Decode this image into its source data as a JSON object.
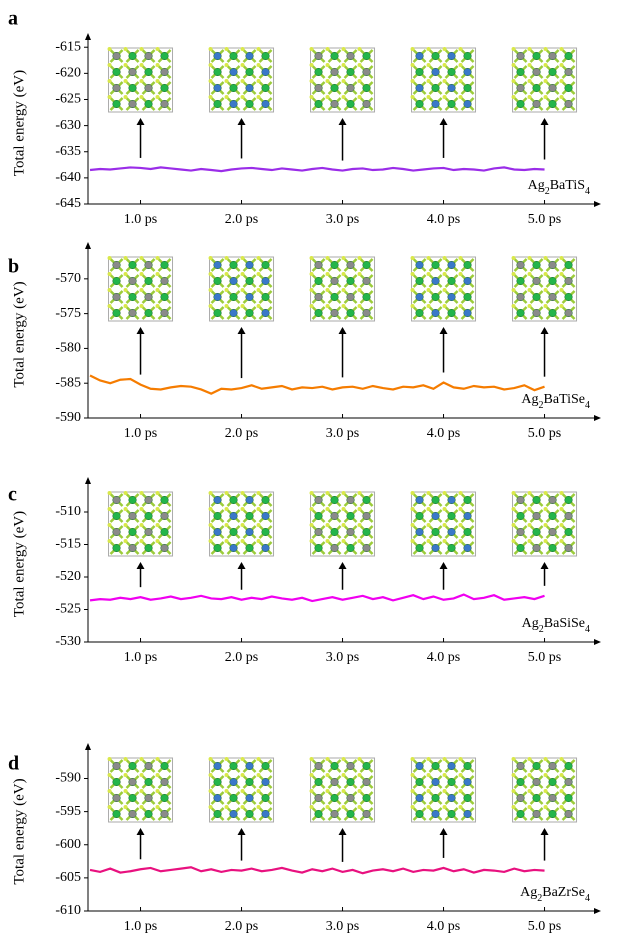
{
  "chart_data": [
    {
      "type": "line",
      "panel_label": "a",
      "ylabel": "Total energy (eV)",
      "compound": [
        "Ag",
        "2",
        "BaTiS",
        "4"
      ],
      "color": "#9a2de8",
      "xlim": [
        0.48,
        5.47
      ],
      "ylim": [
        -645,
        -614
      ],
      "yticks": [
        -645,
        -640,
        -635,
        -630,
        -625,
        -620,
        -615
      ],
      "xticks": [
        {
          "value": 1,
          "label": "1.0 ps"
        },
        {
          "value": 2,
          "label": "2.0 ps"
        },
        {
          "value": 3,
          "label": "3.0 ps"
        },
        {
          "value": 4,
          "label": "4.0 ps"
        },
        {
          "value": 5,
          "label": "5.0 ps"
        }
      ],
      "x": [
        0.5,
        0.6,
        0.7,
        0.8,
        0.9,
        1.0,
        1.1,
        1.2,
        1.3,
        1.4,
        1.5,
        1.6,
        1.7,
        1.8,
        1.9,
        2.0,
        2.1,
        2.2,
        2.3,
        2.4,
        2.5,
        2.6,
        2.7,
        2.8,
        2.9,
        3.0,
        3.1,
        3.2,
        3.3,
        3.4,
        3.5,
        3.6,
        3.7,
        3.8,
        3.9,
        4.0,
        4.1,
        4.2,
        4.3,
        4.4,
        4.5,
        4.6,
        4.7,
        4.8,
        4.9,
        5.0
      ],
      "values": [
        -638.5,
        -638.3,
        -638.4,
        -638.2,
        -638.0,
        -638.1,
        -638.3,
        -638.0,
        -638.2,
        -638.4,
        -638.6,
        -638.3,
        -638.5,
        -638.7,
        -638.4,
        -638.2,
        -638.1,
        -638.3,
        -638.5,
        -638.2,
        -638.4,
        -638.6,
        -638.3,
        -638.1,
        -638.4,
        -638.6,
        -638.3,
        -638.2,
        -638.5,
        -638.4,
        -638.1,
        -638.3,
        -638.6,
        -638.4,
        -638.2,
        -638.1,
        -638.5,
        -638.3,
        -638.4,
        -638.6,
        -638.2,
        -638.0,
        -638.4,
        -638.5,
        -638.3,
        -638.4
      ]
    },
    {
      "type": "line",
      "panel_label": "b",
      "ylabel": "Total energy (eV)",
      "compound": [
        "Ag",
        "2",
        "BaTiSe",
        "4"
      ],
      "color": "#f57c00",
      "xlim": [
        0.48,
        5.47
      ],
      "ylim": [
        -590,
        -566
      ],
      "yticks": [
        -590,
        -585,
        -580,
        -575,
        -570
      ],
      "xticks": [
        {
          "value": 1,
          "label": "1.0 ps"
        },
        {
          "value": 2,
          "label": "2.0 ps"
        },
        {
          "value": 3,
          "label": "3.0 ps"
        },
        {
          "value": 4,
          "label": "4.0 ps"
        },
        {
          "value": 5,
          "label": "5.0 ps"
        }
      ],
      "x": [
        0.5,
        0.6,
        0.7,
        0.8,
        0.9,
        1.0,
        1.1,
        1.2,
        1.3,
        1.4,
        1.5,
        1.6,
        1.7,
        1.8,
        1.9,
        2.0,
        2.1,
        2.2,
        2.3,
        2.4,
        2.5,
        2.6,
        2.7,
        2.8,
        2.9,
        3.0,
        3.1,
        3.2,
        3.3,
        3.4,
        3.5,
        3.6,
        3.7,
        3.8,
        3.9,
        4.0,
        4.1,
        4.2,
        4.3,
        4.4,
        4.5,
        4.6,
        4.7,
        4.8,
        4.9,
        5.0
      ],
      "values": [
        -583.9,
        -584.6,
        -585.0,
        -584.5,
        -584.4,
        -585.2,
        -585.8,
        -585.9,
        -585.6,
        -585.4,
        -585.5,
        -585.9,
        -586.5,
        -585.8,
        -585.9,
        -585.7,
        -585.3,
        -585.8,
        -585.6,
        -585.4,
        -585.9,
        -585.6,
        -585.7,
        -585.5,
        -585.9,
        -585.6,
        -585.5,
        -585.8,
        -585.4,
        -585.7,
        -585.9,
        -585.5,
        -585.6,
        -585.3,
        -585.8,
        -584.9,
        -585.6,
        -585.8,
        -585.4,
        -585.6,
        -585.5,
        -585.9,
        -585.7,
        -585.3,
        -586.0,
        -585.5
      ]
    },
    {
      "type": "line",
      "panel_label": "c",
      "ylabel": "Total energy (eV)",
      "compound": [
        "Ag",
        "2",
        "BaSiSe",
        "4"
      ],
      "color": "#f000f0",
      "xlim": [
        0.48,
        5.47
      ],
      "ylim": [
        -530,
        -506
      ],
      "yticks": [
        -530,
        -525,
        -520,
        -515,
        -510
      ],
      "xticks": [
        {
          "value": 1,
          "label": "1.0 ps"
        },
        {
          "value": 2,
          "label": "2.0 ps"
        },
        {
          "value": 3,
          "label": "3.0 ps"
        },
        {
          "value": 4,
          "label": "4.0 ps"
        },
        {
          "value": 5,
          "label": "5.0 ps"
        }
      ],
      "x": [
        0.5,
        0.6,
        0.7,
        0.8,
        0.9,
        1.0,
        1.1,
        1.2,
        1.3,
        1.4,
        1.5,
        1.6,
        1.7,
        1.8,
        1.9,
        2.0,
        2.1,
        2.2,
        2.3,
        2.4,
        2.5,
        2.6,
        2.7,
        2.8,
        2.9,
        3.0,
        3.1,
        3.2,
        3.3,
        3.4,
        3.5,
        3.6,
        3.7,
        3.8,
        3.9,
        4.0,
        4.1,
        4.2,
        4.3,
        4.4,
        4.5,
        4.6,
        4.7,
        4.8,
        4.9,
        5.0
      ],
      "values": [
        -523.6,
        -523.4,
        -523.5,
        -523.2,
        -523.4,
        -523.1,
        -523.5,
        -523.3,
        -523.0,
        -523.4,
        -523.2,
        -522.9,
        -523.3,
        -523.4,
        -523.1,
        -523.5,
        -523.2,
        -523.4,
        -523.0,
        -523.3,
        -523.5,
        -523.2,
        -523.7,
        -523.4,
        -523.1,
        -523.5,
        -523.2,
        -522.9,
        -523.4,
        -523.1,
        -523.6,
        -523.2,
        -522.8,
        -523.4,
        -523.0,
        -523.5,
        -523.3,
        -522.7,
        -523.4,
        -523.2,
        -522.8,
        -523.5,
        -523.3,
        -523.1,
        -523.4,
        -522.9
      ]
    },
    {
      "type": "line",
      "panel_label": "d",
      "ylabel": "Total energy (eV)",
      "compound": [
        "Ag",
        "2",
        "BaZrSe",
        "4"
      ],
      "color": "#e8117f",
      "xlim": [
        0.48,
        5.47
      ],
      "ylim": [
        -610,
        -586
      ],
      "yticks": [
        -610,
        -605,
        -600,
        -595,
        -590
      ],
      "xticks": [
        {
          "value": 1,
          "label": "1.0 ps"
        },
        {
          "value": 2,
          "label": "2.0 ps"
        },
        {
          "value": 3,
          "label": "3.0 ps"
        },
        {
          "value": 4,
          "label": "4.0 ps"
        },
        {
          "value": 5,
          "label": "5.0 ps"
        }
      ],
      "x": [
        0.5,
        0.6,
        0.7,
        0.8,
        0.9,
        1.0,
        1.1,
        1.2,
        1.3,
        1.4,
        1.5,
        1.6,
        1.7,
        1.8,
        1.9,
        2.0,
        2.1,
        2.2,
        2.3,
        2.4,
        2.5,
        2.6,
        2.7,
        2.8,
        2.9,
        3.0,
        3.1,
        3.2,
        3.3,
        3.4,
        3.5,
        3.6,
        3.7,
        3.8,
        3.9,
        4.0,
        4.1,
        4.2,
        4.3,
        4.4,
        4.5,
        4.6,
        4.7,
        4.8,
        4.9,
        5.0
      ],
      "values": [
        -603.8,
        -604.1,
        -603.6,
        -604.2,
        -604.0,
        -603.7,
        -603.5,
        -604.0,
        -603.8,
        -603.6,
        -603.4,
        -604.0,
        -603.7,
        -604.1,
        -603.8,
        -603.9,
        -603.6,
        -604.0,
        -603.8,
        -603.5,
        -603.9,
        -604.2,
        -603.7,
        -604.0,
        -603.6,
        -604.1,
        -603.8,
        -604.3,
        -603.9,
        -603.7,
        -604.0,
        -603.6,
        -604.1,
        -603.8,
        -603.9,
        -603.5,
        -604.0,
        -603.7,
        -604.2,
        -603.8,
        -603.9,
        -604.1,
        -603.6,
        -604.0,
        -603.8,
        -603.9
      ]
    }
  ]
}
